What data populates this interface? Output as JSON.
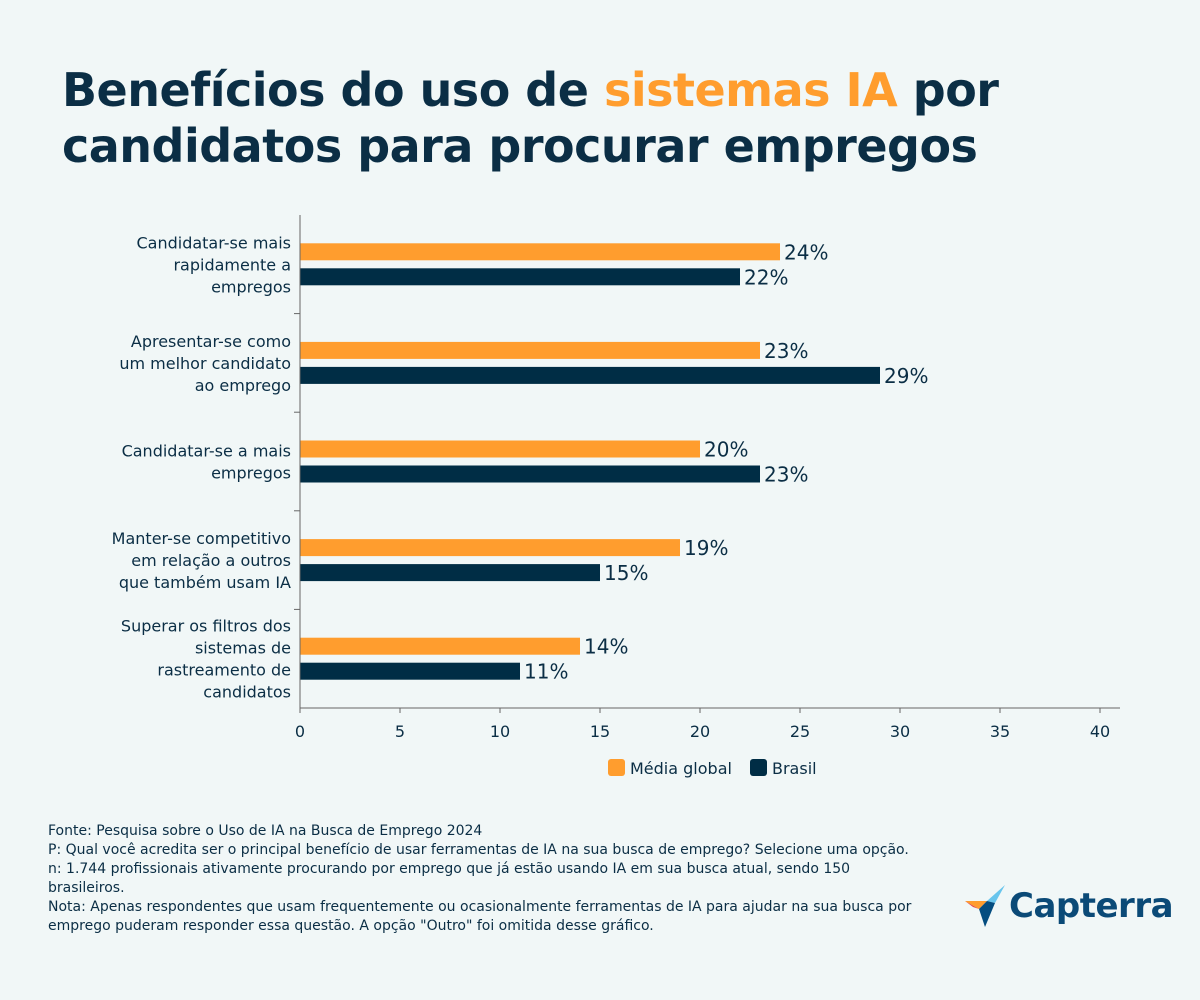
{
  "title": {
    "part1": "Benefícios do uso de ",
    "highlight": "sistemas IA",
    "part2": " por candidatos para procurar empregos"
  },
  "colors": {
    "title": "#0b2e45",
    "highlight": "#ff9d2e",
    "global": "#ff9d2e",
    "brasil": "#002d45",
    "background": "#f1f7f7"
  },
  "chart_data": {
    "type": "bar",
    "orientation": "horizontal",
    "categories": [
      [
        "Candidatar-se mais",
        "rapidamente a",
        "empregos"
      ],
      [
        "Apresentar-se como",
        "um melhor candidato",
        "ao emprego"
      ],
      [
        "Candidatar-se a mais",
        "empregos"
      ],
      [
        "Manter-se competitivo",
        "em relação a outros",
        "que também usam IA"
      ],
      [
        "Superar os filtros dos",
        "sistemas de",
        "rastreamento de",
        "candidatos"
      ]
    ],
    "series": [
      {
        "name": "Média global",
        "values": [
          24,
          23,
          20,
          19,
          14
        ],
        "labels": [
          "24%",
          "23%",
          "20%",
          "19%",
          "14%"
        ]
      },
      {
        "name": "Brasil",
        "values": [
          22,
          29,
          23,
          15,
          11
        ],
        "labels": [
          "22%",
          "29%",
          "23%",
          "15%",
          "11%"
        ]
      }
    ],
    "xlim": [
      0,
      40
    ],
    "xticks": [
      "0",
      "5",
      "10",
      "15",
      "20",
      "25",
      "30",
      "35",
      "40"
    ],
    "grid": false,
    "legend": "bottom-center"
  },
  "footer": {
    "source": "Fonte: Pesquisa sobre o Uso de IA na Busca de Emprego 2024",
    "question": "P: Qual você acredita ser o principal benefício de usar ferramentas de IA na sua busca de emprego? Selecione uma opção.",
    "sample": "n: 1.744 profissionais ativamente procurando por emprego que já estão usando IA em sua busca atual, sendo 150 brasileiros.",
    "note": "Nota: Apenas respondentes que usam frequentemente ou ocasionalmente ferramentas de IA para ajudar na sua busca por emprego puderam responder essa questão. A opção \"Outro\" foi omitida desse gráfico."
  },
  "logo": {
    "text": "Capterra"
  }
}
